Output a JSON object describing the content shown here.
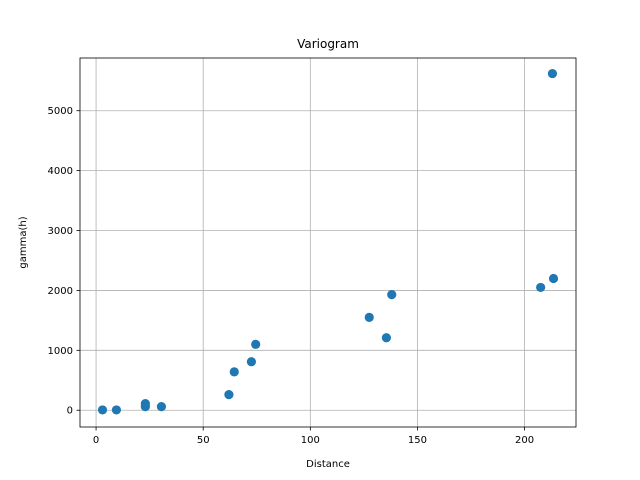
{
  "chart_data": {
    "type": "scatter",
    "title": "Variogram",
    "xlabel": "Distance",
    "ylabel": "gamma(h)",
    "xlim": [
      -7.5,
      224
    ],
    "ylim": [
      -280,
      5880
    ],
    "xticks": [
      0,
      50,
      100,
      150,
      200
    ],
    "yticks": [
      0,
      1000,
      2000,
      3000,
      4000,
      5000
    ],
    "grid": true,
    "color": "#1f77b4",
    "series": [
      {
        "points": [
          [
            3,
            5
          ],
          [
            9.5,
            5
          ],
          [
            23,
            60
          ],
          [
            23,
            110
          ],
          [
            30.5,
            60
          ],
          [
            62,
            260
          ],
          [
            64.5,
            640
          ],
          [
            72.5,
            810
          ],
          [
            74.5,
            1100
          ],
          [
            127.5,
            1550
          ],
          [
            135.5,
            1210
          ],
          [
            138,
            1930
          ],
          [
            207.5,
            2050
          ],
          [
            213,
            5620
          ],
          [
            213.5,
            2200
          ]
        ]
      }
    ]
  }
}
